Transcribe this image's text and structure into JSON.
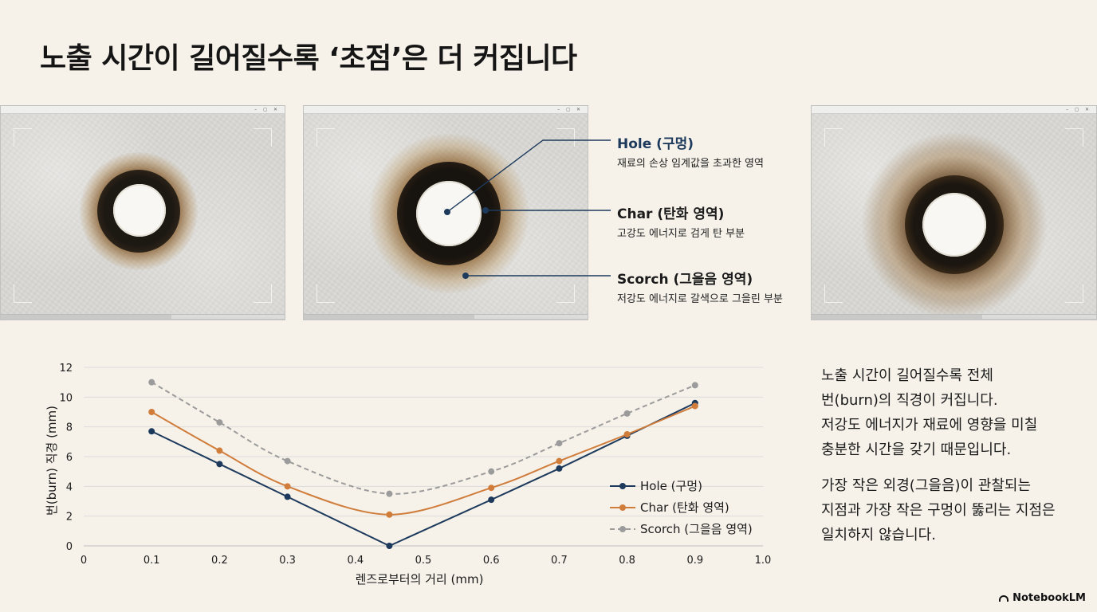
{
  "title": "노출 시간이 길어질수록 ‘초점’은 더 커집니다",
  "window_controls": "– ◻ ✕",
  "callouts": [
    {
      "title": "Hole (구멍)",
      "desc": "재료의 손상 임계값을 초과한 영역"
    },
    {
      "title": "Char (탄화 영역)",
      "desc": "고강도 에너지로 검게 탄 부분"
    },
    {
      "title": "Scorch (그을음 영역)",
      "desc": "저강도 에너지로 갈색으로 그을린 부분"
    }
  ],
  "colors": {
    "hole": "#1d3a5c",
    "char": "#d07d3c",
    "scorch": "#9b9b9b",
    "background": "#f6f2ea"
  },
  "chart_data": {
    "type": "line",
    "xlabel": "렌즈로부터의 거리 (mm)",
    "ylabel": "번(burn) 직경 (mm)",
    "xlim": [
      0,
      1.0
    ],
    "ylim": [
      0,
      12
    ],
    "xticks": [
      "0",
      "0.1",
      "0.2",
      "0.3",
      "0.4",
      "0.5",
      "0.6",
      "0.7",
      "0.8",
      "0.9",
      "1.0"
    ],
    "yticks": [
      "0",
      "2",
      "4",
      "6",
      "8",
      "10",
      "12"
    ],
    "grid": "horizontal",
    "legend": "bottom-right",
    "series": [
      {
        "name": "Hole (구멍)",
        "style": "solid",
        "color": "#1d3a5c",
        "x": [
          0.1,
          0.2,
          0.3,
          0.45,
          0.6,
          0.7,
          0.8,
          0.9
        ],
        "y": [
          7.7,
          5.5,
          3.3,
          0.0,
          3.1,
          5.2,
          7.4,
          9.6
        ]
      },
      {
        "name": "Char (탄화 영역)",
        "style": "solid",
        "color": "#d07d3c",
        "x": [
          0.1,
          0.2,
          0.3,
          0.45,
          0.6,
          0.7,
          0.8,
          0.9
        ],
        "y": [
          9.0,
          6.4,
          4.0,
          2.1,
          3.9,
          5.7,
          7.5,
          9.4
        ]
      },
      {
        "name": "Scorch (그을음 영역)",
        "style": "dashed",
        "color": "#9b9b9b",
        "x": [
          0.1,
          0.2,
          0.3,
          0.45,
          0.6,
          0.7,
          0.8,
          0.9
        ],
        "y": [
          11.0,
          8.3,
          5.7,
          3.5,
          5.0,
          6.9,
          8.9,
          10.8
        ]
      }
    ]
  },
  "side_text": {
    "paragraph1": [
      "노출 시간이 길어질수록 전체",
      "번(burn)의 직경이 커집니다.",
      "저강도 에너지가 재료에 영향을 미칠",
      "충분한 시간을 갖기 때문입니다."
    ],
    "paragraph2": [
      "가장 작은 외경(그을음)이 관찰되는",
      "지점과 가장 작은 구멍이 뚫리는 지점은",
      "일치하지 않습니다."
    ]
  },
  "brand": "NotebookLM"
}
